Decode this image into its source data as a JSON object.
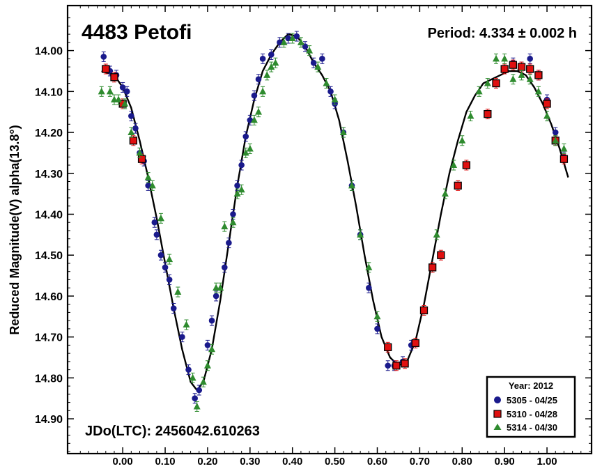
{
  "chart_data": {
    "type": "scatter",
    "title": "4483 Petofi",
    "period_label": "Period: 4.334 ± 0.002 h",
    "epoch_label": "JDo(LTC): 2456042.610263",
    "ylabel": "Reduced Magnitude(V) alpha(13.8°)",
    "xlabel": "",
    "xlim": [
      -0.13,
      1.105
    ],
    "ylim": [
      13.89,
      14.985
    ],
    "y_inverted": true,
    "x_ticks": [
      "0.00",
      "0.10",
      "0.20",
      "0.30",
      "0.40",
      "0.50",
      "0.60",
      "0.70",
      "0.80",
      "0.90",
      "1.00"
    ],
    "y_ticks": [
      "14.00",
      "14.10",
      "14.20",
      "14.30",
      "14.40",
      "14.50",
      "14.60",
      "14.70",
      "14.80",
      "14.90"
    ],
    "grid": false,
    "legend": {
      "placement": "bottom-right",
      "title": "Year: 2012",
      "entries": [
        {
          "label": "5305 - 04/25",
          "color": "#1a1a8c",
          "marker": "circle"
        },
        {
          "label": "5310 - 04/28",
          "color": "#e01010",
          "marker": "square"
        },
        {
          "label": "5314 - 04/30",
          "color": "#2e8b2e",
          "marker": "triangle"
        }
      ]
    },
    "fit_curve": {
      "color": "#000000",
      "points": [
        [
          -0.05,
          14.05
        ],
        [
          -0.02,
          14.06
        ],
        [
          0.0,
          14.09
        ],
        [
          0.02,
          14.14
        ],
        [
          0.04,
          14.22
        ],
        [
          0.06,
          14.31
        ],
        [
          0.08,
          14.41
        ],
        [
          0.1,
          14.52
        ],
        [
          0.12,
          14.63
        ],
        [
          0.14,
          14.73
        ],
        [
          0.16,
          14.81
        ],
        [
          0.175,
          14.83
        ],
        [
          0.19,
          14.81
        ],
        [
          0.21,
          14.73
        ],
        [
          0.23,
          14.61
        ],
        [
          0.25,
          14.47
        ],
        [
          0.27,
          14.33
        ],
        [
          0.29,
          14.21
        ],
        [
          0.31,
          14.12
        ],
        [
          0.33,
          14.05
        ],
        [
          0.35,
          14.01
        ],
        [
          0.37,
          13.98
        ],
        [
          0.39,
          13.96
        ],
        [
          0.41,
          13.965
        ],
        [
          0.43,
          13.99
        ],
        [
          0.45,
          14.03
        ],
        [
          0.47,
          14.06
        ],
        [
          0.49,
          14.1
        ],
        [
          0.51,
          14.17
        ],
        [
          0.53,
          14.27
        ],
        [
          0.55,
          14.38
        ],
        [
          0.57,
          14.5
        ],
        [
          0.59,
          14.61
        ],
        [
          0.61,
          14.7
        ],
        [
          0.63,
          14.75
        ],
        [
          0.65,
          14.77
        ],
        [
          0.67,
          14.76
        ],
        [
          0.69,
          14.71
        ],
        [
          0.71,
          14.62
        ],
        [
          0.73,
          14.51
        ],
        [
          0.75,
          14.4
        ],
        [
          0.77,
          14.3
        ],
        [
          0.79,
          14.22
        ],
        [
          0.81,
          14.15
        ],
        [
          0.83,
          14.11
        ],
        [
          0.85,
          14.08
        ],
        [
          0.87,
          14.07
        ],
        [
          0.89,
          14.06
        ],
        [
          0.91,
          14.05
        ],
        [
          0.93,
          14.05
        ],
        [
          0.95,
          14.06
        ],
        [
          0.97,
          14.09
        ],
        [
          0.99,
          14.13
        ],
        [
          1.01,
          14.18
        ],
        [
          1.03,
          14.24
        ],
        [
          1.05,
          14.31
        ]
      ]
    },
    "series": [
      {
        "name": "5305 - 04/25",
        "marker": "circle",
        "color": "#1a1a8c",
        "points": [
          [
            -0.045,
            14.015
          ],
          [
            -0.03,
            14.05
          ],
          [
            -0.015,
            14.06
          ],
          [
            0.0,
            14.09
          ],
          [
            0.01,
            14.1
          ],
          [
            0.02,
            14.16
          ],
          [
            0.03,
            14.19
          ],
          [
            0.04,
            14.25
          ],
          [
            0.05,
            14.27
          ],
          [
            0.06,
            14.33
          ],
          [
            0.075,
            14.42
          ],
          [
            0.08,
            14.45
          ],
          [
            0.09,
            14.5
          ],
          [
            0.1,
            14.53
          ],
          [
            0.11,
            14.56
          ],
          [
            0.12,
            14.63
          ],
          [
            0.14,
            14.7
          ],
          [
            0.155,
            14.78
          ],
          [
            0.17,
            14.85
          ],
          [
            0.18,
            14.83
          ],
          [
            0.2,
            14.72
          ],
          [
            0.21,
            14.66
          ],
          [
            0.22,
            14.6
          ],
          [
            0.24,
            14.53
          ],
          [
            0.25,
            14.47
          ],
          [
            0.26,
            14.4
          ],
          [
            0.27,
            14.33
          ],
          [
            0.28,
            14.28
          ],
          [
            0.29,
            14.21
          ],
          [
            0.3,
            14.17
          ],
          [
            0.31,
            14.11
          ],
          [
            0.32,
            14.07
          ],
          [
            0.33,
            14.02
          ],
          [
            0.35,
            14.01
          ],
          [
            0.37,
            13.98
          ],
          [
            0.39,
            13.97
          ],
          [
            0.41,
            13.965
          ],
          [
            0.43,
            13.99
          ],
          [
            0.45,
            14.03
          ],
          [
            0.47,
            14.02
          ],
          [
            0.49,
            14.1
          ],
          [
            0.5,
            14.13
          ],
          [
            0.52,
            14.2
          ],
          [
            0.54,
            14.33
          ],
          [
            0.56,
            14.45
          ],
          [
            0.58,
            14.58
          ],
          [
            0.6,
            14.68
          ],
          [
            0.625,
            14.77
          ],
          [
            0.64,
            14.77
          ],
          [
            0.66,
            14.76
          ],
          [
            0.68,
            14.72
          ],
          [
            0.92,
            14.03
          ],
          [
            0.94,
            14.04
          ],
          [
            0.96,
            14.02
          ],
          [
            0.98,
            14.06
          ],
          [
            1.0,
            14.12
          ],
          [
            1.02,
            14.2
          ],
          [
            1.04,
            14.26
          ]
        ]
      },
      {
        "name": "5310 - 04/28",
        "marker": "square",
        "color": "#e01010",
        "points": [
          [
            -0.04,
            14.045
          ],
          [
            -0.02,
            14.065
          ],
          [
            0.0,
            14.13
          ],
          [
            0.025,
            14.22
          ],
          [
            0.045,
            14.265
          ],
          [
            0.625,
            14.725
          ],
          [
            0.645,
            14.77
          ],
          [
            0.665,
            14.765
          ],
          [
            0.69,
            14.715
          ],
          [
            0.71,
            14.635
          ],
          [
            0.73,
            14.53
          ],
          [
            0.75,
            14.5
          ],
          [
            0.79,
            14.33
          ],
          [
            0.81,
            14.28
          ],
          [
            0.86,
            14.155
          ],
          [
            0.88,
            14.08
          ],
          [
            0.9,
            14.045
          ],
          [
            0.92,
            14.035
          ],
          [
            0.94,
            14.04
          ],
          [
            0.96,
            14.045
          ],
          [
            0.98,
            14.06
          ],
          [
            1.0,
            14.13
          ],
          [
            1.02,
            14.22
          ],
          [
            1.04,
            14.265
          ]
        ]
      },
      {
        "name": "5314 - 04/30",
        "marker": "triangle",
        "color": "#2e8b2e",
        "points": [
          [
            -0.05,
            14.1
          ],
          [
            -0.03,
            14.1
          ],
          [
            -0.02,
            14.12
          ],
          [
            -0.01,
            14.12
          ],
          [
            0.005,
            14.13
          ],
          [
            0.02,
            14.2
          ],
          [
            0.04,
            14.25
          ],
          [
            0.06,
            14.31
          ],
          [
            0.07,
            14.33
          ],
          [
            0.09,
            14.41
          ],
          [
            0.11,
            14.51
          ],
          [
            0.13,
            14.59
          ],
          [
            0.15,
            14.67
          ],
          [
            0.165,
            14.8
          ],
          [
            0.175,
            14.87
          ],
          [
            0.19,
            14.81
          ],
          [
            0.2,
            14.77
          ],
          [
            0.21,
            14.73
          ],
          [
            0.22,
            14.58
          ],
          [
            0.23,
            14.58
          ],
          [
            0.24,
            14.43
          ],
          [
            0.26,
            14.42
          ],
          [
            0.27,
            14.35
          ],
          [
            0.28,
            14.34
          ],
          [
            0.29,
            14.25
          ],
          [
            0.3,
            14.24
          ],
          [
            0.31,
            14.17
          ],
          [
            0.32,
            14.15
          ],
          [
            0.33,
            14.1
          ],
          [
            0.34,
            14.06
          ],
          [
            0.35,
            14.04
          ],
          [
            0.36,
            14.03
          ],
          [
            0.38,
            13.98
          ],
          [
            0.4,
            13.97
          ],
          [
            0.42,
            13.98
          ],
          [
            0.44,
            14.0
          ],
          [
            0.46,
            14.04
          ],
          [
            0.48,
            14.08
          ],
          [
            0.5,
            14.12
          ],
          [
            0.52,
            14.2
          ],
          [
            0.54,
            14.33
          ],
          [
            0.56,
            14.45
          ],
          [
            0.58,
            14.53
          ],
          [
            0.6,
            14.65
          ],
          [
            0.74,
            14.45
          ],
          [
            0.76,
            14.35
          ],
          [
            0.78,
            14.28
          ],
          [
            0.8,
            14.22
          ],
          [
            0.82,
            14.16
          ],
          [
            0.84,
            14.1
          ],
          [
            0.86,
            14.08
          ],
          [
            0.88,
            14.02
          ],
          [
            0.9,
            14.02
          ],
          [
            0.92,
            14.07
          ],
          [
            0.94,
            14.06
          ],
          [
            0.96,
            14.07
          ],
          [
            0.98,
            14.1
          ],
          [
            1.0,
            14.16
          ],
          [
            1.02,
            14.22
          ],
          [
            1.04,
            14.24
          ]
        ]
      }
    ]
  }
}
